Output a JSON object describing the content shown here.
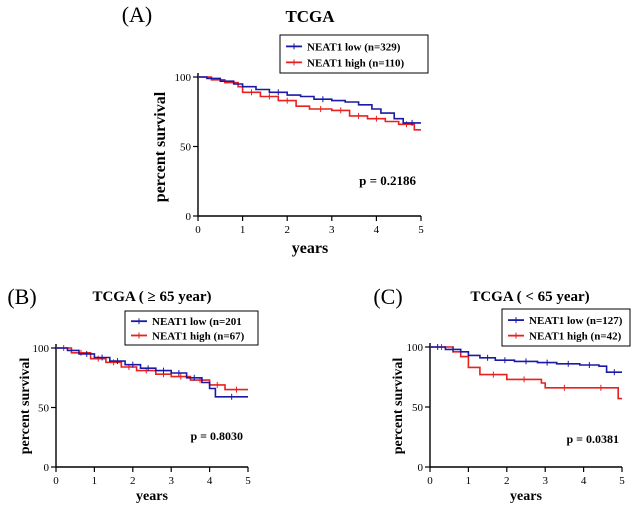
{
  "chart_data": [
    {
      "type": "line",
      "panel_label": "(A)",
      "title": "TCGA",
      "xlabel": "years",
      "ylabel": "percent survival",
      "xlim": [
        0,
        5
      ],
      "ylim": [
        0,
        105
      ],
      "xticks": [
        "0",
        "1",
        "2",
        "3",
        "4",
        "5"
      ],
      "yticks": [
        "0",
        "50",
        "100"
      ],
      "step": true,
      "grid": false,
      "legend_position": "top-right",
      "annotation": "p = 0.2186",
      "series": [
        {
          "name": "NEAT1 low (n=329)",
          "color": "#1a1aa6",
          "x": [
            0,
            0.2,
            0.5,
            0.8,
            1.0,
            1.3,
            1.6,
            2.0,
            2.3,
            2.6,
            3.0,
            3.3,
            3.6,
            3.9,
            4.1,
            4.4,
            4.6,
            5.0
          ],
          "y": [
            100,
            99,
            97,
            95,
            93,
            91,
            89,
            87,
            86,
            84,
            83,
            82,
            80,
            77,
            74,
            70,
            67,
            67
          ]
        },
        {
          "name": "NEAT1 high (n=110)",
          "color": "#e8201f",
          "x": [
            0,
            0.3,
            0.6,
            0.9,
            1.0,
            1.4,
            1.8,
            2.2,
            2.5,
            3.0,
            3.4,
            3.8,
            4.2,
            4.5,
            4.85,
            5.0
          ],
          "y": [
            100,
            98,
            96,
            93,
            89,
            86,
            83,
            79,
            77,
            76,
            72,
            70,
            68,
            66,
            62,
            62
          ]
        }
      ]
    },
    {
      "type": "line",
      "panel_label": "(B)",
      "title": "TCGA ( ≥ 65 year)",
      "xlabel": "years",
      "ylabel": "percent survival",
      "xlim": [
        0,
        5
      ],
      "ylim": [
        0,
        105
      ],
      "xticks": [
        "0",
        "1",
        "2",
        "3",
        "4",
        "5"
      ],
      "yticks": [
        "0",
        "50",
        "100"
      ],
      "step": true,
      "grid": false,
      "legend_position": "top-right",
      "annotation": "p = 0.8030",
      "series": [
        {
          "name": "NEAT1 low (n=201",
          "color": "#1a1aa6",
          "x": [
            0,
            0.3,
            0.6,
            1.0,
            1.4,
            1.8,
            2.2,
            2.6,
            3.0,
            3.4,
            3.8,
            4.0,
            4.15,
            5.0
          ],
          "y": [
            100,
            98,
            95,
            92,
            89,
            86,
            83,
            81,
            79,
            75,
            71,
            66,
            59,
            59
          ]
        },
        {
          "name": "NEAT1 high (n=67)",
          "color": "#e8201f",
          "x": [
            0,
            0.4,
            0.9,
            1.3,
            1.7,
            2.1,
            2.6,
            3.0,
            3.5,
            4.0,
            4.4,
            5.0
          ],
          "y": [
            100,
            96,
            91,
            88,
            84,
            81,
            78,
            76,
            73,
            69,
            65,
            65
          ]
        }
      ]
    },
    {
      "type": "line",
      "panel_label": "(C)",
      "title": "TCGA ( < 65 year)",
      "xlabel": "years",
      "ylabel": "percent survival",
      "xlim": [
        0,
        5
      ],
      "ylim": [
        0,
        105
      ],
      "xticks": [
        "0",
        "1",
        "2",
        "3",
        "4",
        "5"
      ],
      "yticks": [
        "0",
        "50",
        "100"
      ],
      "step": true,
      "grid": false,
      "legend_position": "top-right",
      "annotation": "p = 0.0381",
      "series": [
        {
          "name": "NEAT1 low (n=127)",
          "color": "#1a1aa6",
          "x": [
            0,
            0.4,
            0.8,
            1.0,
            1.3,
            1.7,
            2.2,
            2.8,
            3.3,
            3.9,
            4.4,
            4.6,
            5.0
          ],
          "y": [
            100,
            98,
            96,
            93,
            91,
            89,
            88,
            87,
            86,
            85,
            84,
            79,
            79
          ]
        },
        {
          "name": "NEAT1 high (n=42)",
          "color": "#e8201f",
          "x": [
            0,
            0.6,
            0.8,
            1.0,
            1.3,
            2.0,
            2.9,
            3.0,
            4.0,
            4.9,
            5.0
          ],
          "y": [
            100,
            96,
            92,
            83,
            77,
            73,
            70,
            66,
            66,
            57,
            57
          ]
        }
      ]
    }
  ]
}
